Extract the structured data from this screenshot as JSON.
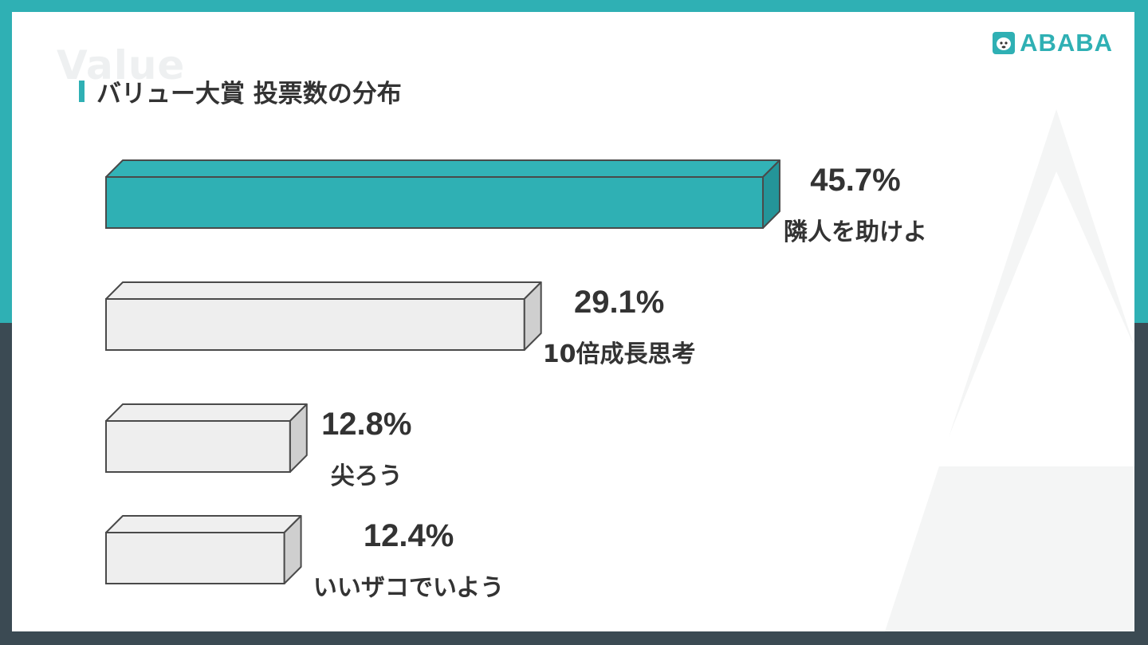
{
  "header": {
    "watermark": "Value",
    "title": "バリュー大賞 投票数の分布",
    "logo": "ABABA"
  },
  "colors": {
    "accent": "#2fb0b4",
    "navy": "#3b4a53",
    "bar_top_accent": "#32b3b7",
    "bar_front_accent": "#2fb0b4",
    "bar_side_accent": "#249599",
    "bar_top_plain": "#efefef",
    "bar_front_plain": "#eeeeee",
    "bar_side_plain": "#cfcfcf",
    "text": "#333333"
  },
  "chart_data": {
    "type": "bar",
    "orientation": "horizontal",
    "categories": [
      "隣人を助けよ",
      "10倍成長思考",
      "尖ろう",
      "いいザコでいよう"
    ],
    "values": [
      45.7,
      29.1,
      12.8,
      12.4
    ],
    "value_labels": [
      "45.7%",
      "29.1%",
      "12.8%",
      "12.4%"
    ],
    "highlight_index": 0,
    "unit": "%"
  }
}
